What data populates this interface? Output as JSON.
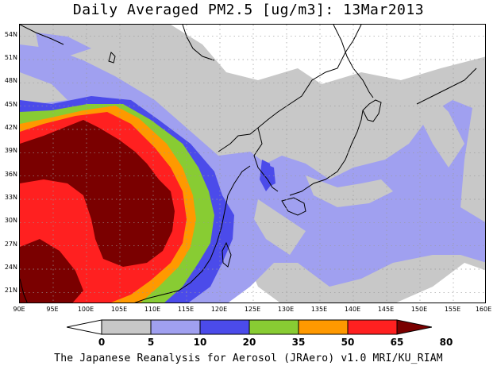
{
  "title": "Daily Averaged PM2.5 [ug/m3]: 13Mar2013",
  "footer": "The Japanese Reanalysis for Aerosol (JRAero) v1.0 MRI/KU_RIAM",
  "map": {
    "lon_range": [
      90,
      160
    ],
    "lat_range": [
      19.5,
      55.5
    ],
    "lon_labels": [
      "90E",
      "95E",
      "100E",
      "105E",
      "110E",
      "115E",
      "120E",
      "125E",
      "130E",
      "135E",
      "140E",
      "145E",
      "150E",
      "155E",
      "160E"
    ],
    "lat_labels": [
      "54N",
      "51N",
      "48N",
      "45N",
      "42N",
      "39N",
      "36N",
      "33N",
      "30N",
      "27N",
      "24N",
      "21N"
    ],
    "gridlines": "dotted",
    "variable": "PM2.5",
    "units": "ug/m3"
  },
  "colorbar": {
    "levels": [
      "0",
      "5",
      "10",
      "20",
      "35",
      "50",
      "65",
      "80"
    ],
    "colors": [
      "#ffffff",
      "#c8c8c8",
      "#a0a0f0",
      "#4b4bea",
      "#88cc33",
      "#ff9900",
      "#ff2020",
      "#7a0000"
    ]
  }
}
